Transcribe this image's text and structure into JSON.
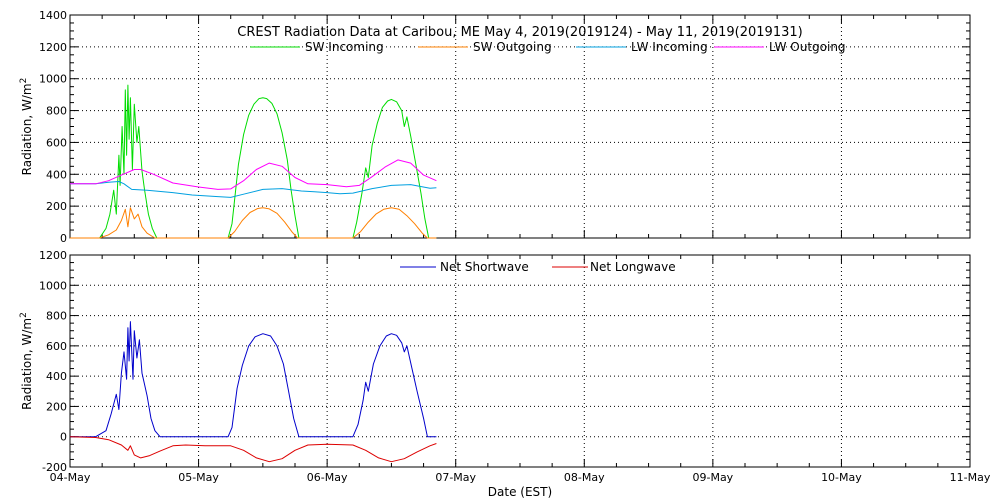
{
  "chart_data": [
    {
      "type": "line",
      "title": "CREST Radiation Data at Caribou, ME   May  4, 2019(2019124) - May 11, 2019(2019131)",
      "xlabel": "",
      "ylabel": "Radiation, W/m^2",
      "x_unit": "days since 04-May",
      "xlim": [
        0,
        7
      ],
      "ylim": [
        0,
        1400
      ],
      "yticks": [
        0,
        200,
        400,
        600,
        800,
        1000,
        1200,
        1400
      ],
      "grid": true,
      "legend_position": "top",
      "series": [
        {
          "name": "SW Incoming",
          "color": "#00dd00",
          "points": [
            [
              0.0,
              0
            ],
            [
              0.23,
              0
            ],
            [
              0.28,
              60
            ],
            [
              0.31,
              150
            ],
            [
              0.34,
              300
            ],
            [
              0.36,
              150
            ],
            [
              0.38,
              520
            ],
            [
              0.39,
              330
            ],
            [
              0.405,
              700
            ],
            [
              0.42,
              400
            ],
            [
              0.43,
              930
            ],
            [
              0.44,
              520
            ],
            [
              0.45,
              960
            ],
            [
              0.46,
              620
            ],
            [
              0.47,
              880
            ],
            [
              0.485,
              430
            ],
            [
              0.5,
              840
            ],
            [
              0.52,
              600
            ],
            [
              0.535,
              700
            ],
            [
              0.56,
              420
            ],
            [
              0.58,
              300
            ],
            [
              0.61,
              150
            ],
            [
              0.64,
              60
            ],
            [
              0.675,
              0
            ],
            [
              1.23,
              0
            ],
            [
              1.26,
              90
            ],
            [
              1.28,
              240
            ],
            [
              1.31,
              460
            ],
            [
              1.35,
              650
            ],
            [
              1.39,
              770
            ],
            [
              1.43,
              840
            ],
            [
              1.47,
              875
            ],
            [
              1.5,
              880
            ],
            [
              1.53,
              875
            ],
            [
              1.57,
              845
            ],
            [
              1.61,
              780
            ],
            [
              1.65,
              660
            ],
            [
              1.69,
              490
            ],
            [
              1.72,
              300
            ],
            [
              1.75,
              140
            ],
            [
              1.78,
              0
            ],
            [
              2.2,
              0
            ],
            [
              2.23,
              100
            ],
            [
              2.27,
              280
            ],
            [
              2.3,
              440
            ],
            [
              2.32,
              380
            ],
            [
              2.35,
              580
            ],
            [
              2.39,
              720
            ],
            [
              2.43,
              820
            ],
            [
              2.47,
              860
            ],
            [
              2.5,
              870
            ],
            [
              2.54,
              855
            ],
            [
              2.58,
              800
            ],
            [
              2.6,
              700
            ],
            [
              2.62,
              760
            ],
            [
              2.65,
              640
            ],
            [
              2.69,
              460
            ],
            [
              2.73,
              280
            ],
            [
              2.76,
              120
            ],
            [
              2.79,
              0
            ],
            [
              2.85,
              0
            ]
          ]
        },
        {
          "name": "SW Outgoing",
          "color": "#ff8000",
          "points": [
            [
              0.0,
              0
            ],
            [
              0.23,
              0
            ],
            [
              0.3,
              20
            ],
            [
              0.36,
              50
            ],
            [
              0.4,
              110
            ],
            [
              0.43,
              180
            ],
            [
              0.45,
              70
            ],
            [
              0.47,
              190
            ],
            [
              0.5,
              120
            ],
            [
              0.53,
              150
            ],
            [
              0.56,
              70
            ],
            [
              0.6,
              30
            ],
            [
              0.66,
              0
            ],
            [
              1.23,
              0
            ],
            [
              1.28,
              40
            ],
            [
              1.34,
              110
            ],
            [
              1.4,
              160
            ],
            [
              1.46,
              185
            ],
            [
              1.5,
              190
            ],
            [
              1.55,
              183
            ],
            [
              1.61,
              155
            ],
            [
              1.67,
              100
            ],
            [
              1.73,
              35
            ],
            [
              1.77,
              0
            ],
            [
              2.2,
              0
            ],
            [
              2.26,
              40
            ],
            [
              2.32,
              100
            ],
            [
              2.38,
              150
            ],
            [
              2.44,
              180
            ],
            [
              2.5,
              190
            ],
            [
              2.56,
              180
            ],
            [
              2.62,
              140
            ],
            [
              2.68,
              90
            ],
            [
              2.74,
              30
            ],
            [
              2.78,
              0
            ],
            [
              2.85,
              0
            ]
          ]
        },
        {
          "name": "LW Incoming",
          "color": "#00a0e0",
          "points": [
            [
              0.0,
              340
            ],
            [
              0.2,
              340
            ],
            [
              0.3,
              350
            ],
            [
              0.38,
              355
            ],
            [
              0.42,
              340
            ],
            [
              0.48,
              305
            ],
            [
              0.6,
              300
            ],
            [
              0.8,
              285
            ],
            [
              0.95,
              270
            ],
            [
              1.15,
              260
            ],
            [
              1.25,
              255
            ],
            [
              1.35,
              275
            ],
            [
              1.5,
              305
            ],
            [
              1.65,
              310
            ],
            [
              1.8,
              295
            ],
            [
              1.9,
              290
            ],
            [
              2.0,
              285
            ],
            [
              2.1,
              278
            ],
            [
              2.2,
              282
            ],
            [
              2.35,
              310
            ],
            [
              2.5,
              330
            ],
            [
              2.65,
              335
            ],
            [
              2.8,
              312
            ],
            [
              2.85,
              315
            ]
          ]
        },
        {
          "name": "LW Outgoing",
          "color": "#ff00ff",
          "points": [
            [
              0.0,
              340
            ],
            [
              0.2,
              340
            ],
            [
              0.3,
              360
            ],
            [
              0.4,
              395
            ],
            [
              0.5,
              430
            ],
            [
              0.55,
              430
            ],
            [
              0.65,
              400
            ],
            [
              0.8,
              345
            ],
            [
              1.0,
              320
            ],
            [
              1.15,
              305
            ],
            [
              1.25,
              308
            ],
            [
              1.35,
              360
            ],
            [
              1.45,
              430
            ],
            [
              1.55,
              470
            ],
            [
              1.65,
              450
            ],
            [
              1.75,
              380
            ],
            [
              1.85,
              340
            ],
            [
              2.0,
              335
            ],
            [
              2.15,
              322
            ],
            [
              2.25,
              330
            ],
            [
              2.35,
              385
            ],
            [
              2.45,
              445
            ],
            [
              2.55,
              490
            ],
            [
              2.65,
              470
            ],
            [
              2.75,
              395
            ],
            [
              2.85,
              360
            ]
          ]
        }
      ]
    },
    {
      "type": "line",
      "title": "",
      "xlabel": "Date (EST)",
      "ylabel": "Radiation, W/m^2",
      "x_unit": "days since 04-May",
      "xlim": [
        0,
        7
      ],
      "ylim": [
        -200,
        1200
      ],
      "yticks": [
        -200,
        0,
        200,
        400,
        600,
        800,
        1000,
        1200
      ],
      "xtick_labels": [
        "04-May",
        "05-May",
        "06-May",
        "07-May",
        "08-May",
        "09-May",
        "10-May",
        "11-May"
      ],
      "grid": true,
      "legend_position": "top",
      "series": [
        {
          "name": "Net Shortwave",
          "color": "#0000cc",
          "points": [
            [
              0.0,
              0
            ],
            [
              0.2,
              0
            ],
            [
              0.28,
              40
            ],
            [
              0.32,
              150
            ],
            [
              0.36,
              280
            ],
            [
              0.38,
              180
            ],
            [
              0.4,
              420
            ],
            [
              0.42,
              560
            ],
            [
              0.44,
              380
            ],
            [
              0.45,
              720
            ],
            [
              0.46,
              500
            ],
            [
              0.47,
              760
            ],
            [
              0.49,
              380
            ],
            [
              0.5,
              700
            ],
            [
              0.52,
              520
            ],
            [
              0.54,
              640
            ],
            [
              0.56,
              420
            ],
            [
              0.6,
              270
            ],
            [
              0.63,
              120
            ],
            [
              0.66,
              40
            ],
            [
              0.7,
              0
            ],
            [
              1.23,
              0
            ],
            [
              1.26,
              60
            ],
            [
              1.3,
              320
            ],
            [
              1.34,
              470
            ],
            [
              1.39,
              600
            ],
            [
              1.44,
              660
            ],
            [
              1.5,
              680
            ],
            [
              1.56,
              665
            ],
            [
              1.61,
              600
            ],
            [
              1.66,
              480
            ],
            [
              1.7,
              300
            ],
            [
              1.74,
              120
            ],
            [
              1.78,
              0
            ],
            [
              2.2,
              0
            ],
            [
              2.24,
              80
            ],
            [
              2.28,
              240
            ],
            [
              2.3,
              360
            ],
            [
              2.32,
              300
            ],
            [
              2.36,
              480
            ],
            [
              2.41,
              600
            ],
            [
              2.46,
              665
            ],
            [
              2.5,
              680
            ],
            [
              2.54,
              670
            ],
            [
              2.58,
              620
            ],
            [
              2.6,
              560
            ],
            [
              2.62,
              600
            ],
            [
              2.66,
              450
            ],
            [
              2.7,
              300
            ],
            [
              2.75,
              120
            ],
            [
              2.78,
              0
            ],
            [
              2.85,
              0
            ]
          ]
        },
        {
          "name": "Net Longwave",
          "color": "#dd0000",
          "points": [
            [
              0.0,
              0
            ],
            [
              0.2,
              -5
            ],
            [
              0.3,
              -20
            ],
            [
              0.4,
              -55
            ],
            [
              0.45,
              -90
            ],
            [
              0.47,
              -60
            ],
            [
              0.5,
              -120
            ],
            [
              0.55,
              -140
            ],
            [
              0.62,
              -125
            ],
            [
              0.7,
              -95
            ],
            [
              0.8,
              -60
            ],
            [
              0.9,
              -55
            ],
            [
              1.05,
              -60
            ],
            [
              1.25,
              -60
            ],
            [
              1.35,
              -90
            ],
            [
              1.45,
              -140
            ],
            [
              1.55,
              -165
            ],
            [
              1.65,
              -145
            ],
            [
              1.75,
              -90
            ],
            [
              1.85,
              -55
            ],
            [
              2.0,
              -50
            ],
            [
              2.2,
              -55
            ],
            [
              2.3,
              -90
            ],
            [
              2.4,
              -140
            ],
            [
              2.5,
              -165
            ],
            [
              2.6,
              -145
            ],
            [
              2.7,
              -100
            ],
            [
              2.8,
              -60
            ],
            [
              2.85,
              -45
            ]
          ]
        }
      ]
    }
  ]
}
